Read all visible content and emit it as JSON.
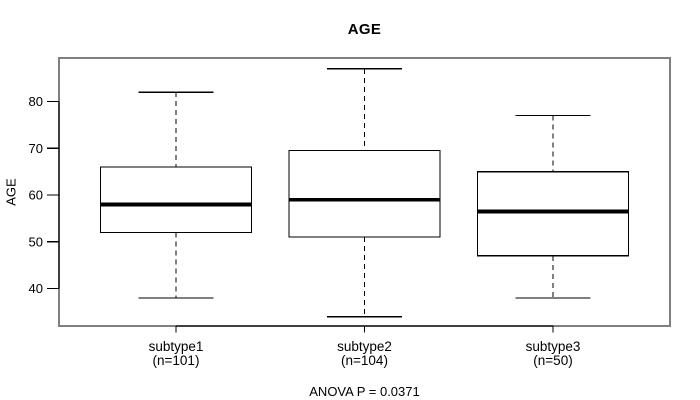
{
  "chart_data": {
    "type": "boxplot",
    "title": "AGE",
    "ylabel": "AGE",
    "xlabel": "",
    "ylim": [
      32,
      89.3
    ],
    "yticks": [
      40,
      50,
      60,
      70,
      80
    ],
    "grid": false,
    "legend": null,
    "groups": [
      {
        "label": "subtype1",
        "sublabel": "(n=101)",
        "n": 101,
        "whisker_low": 38,
        "q1": 52,
        "median": 58,
        "q3": 66,
        "whisker_high": 82
      },
      {
        "label": "subtype2",
        "sublabel": "(n=104)",
        "n": 104,
        "whisker_low": 34,
        "q1": 51,
        "median": 59,
        "q3": 69.5,
        "whisker_high": 87
      },
      {
        "label": "subtype3",
        "sublabel": "(n=50)",
        "n": 50,
        "whisker_low": 38,
        "q1": 47,
        "median": 56.5,
        "q3": 65,
        "whisker_high": 77
      }
    ],
    "annotation": "ANOVA P = 0.0371",
    "colors": {
      "frame": "#808080",
      "line": "#000000",
      "median": "#000000",
      "box_fill": "#ffffff",
      "background": "#ffffff",
      "text": "#000000"
    }
  }
}
